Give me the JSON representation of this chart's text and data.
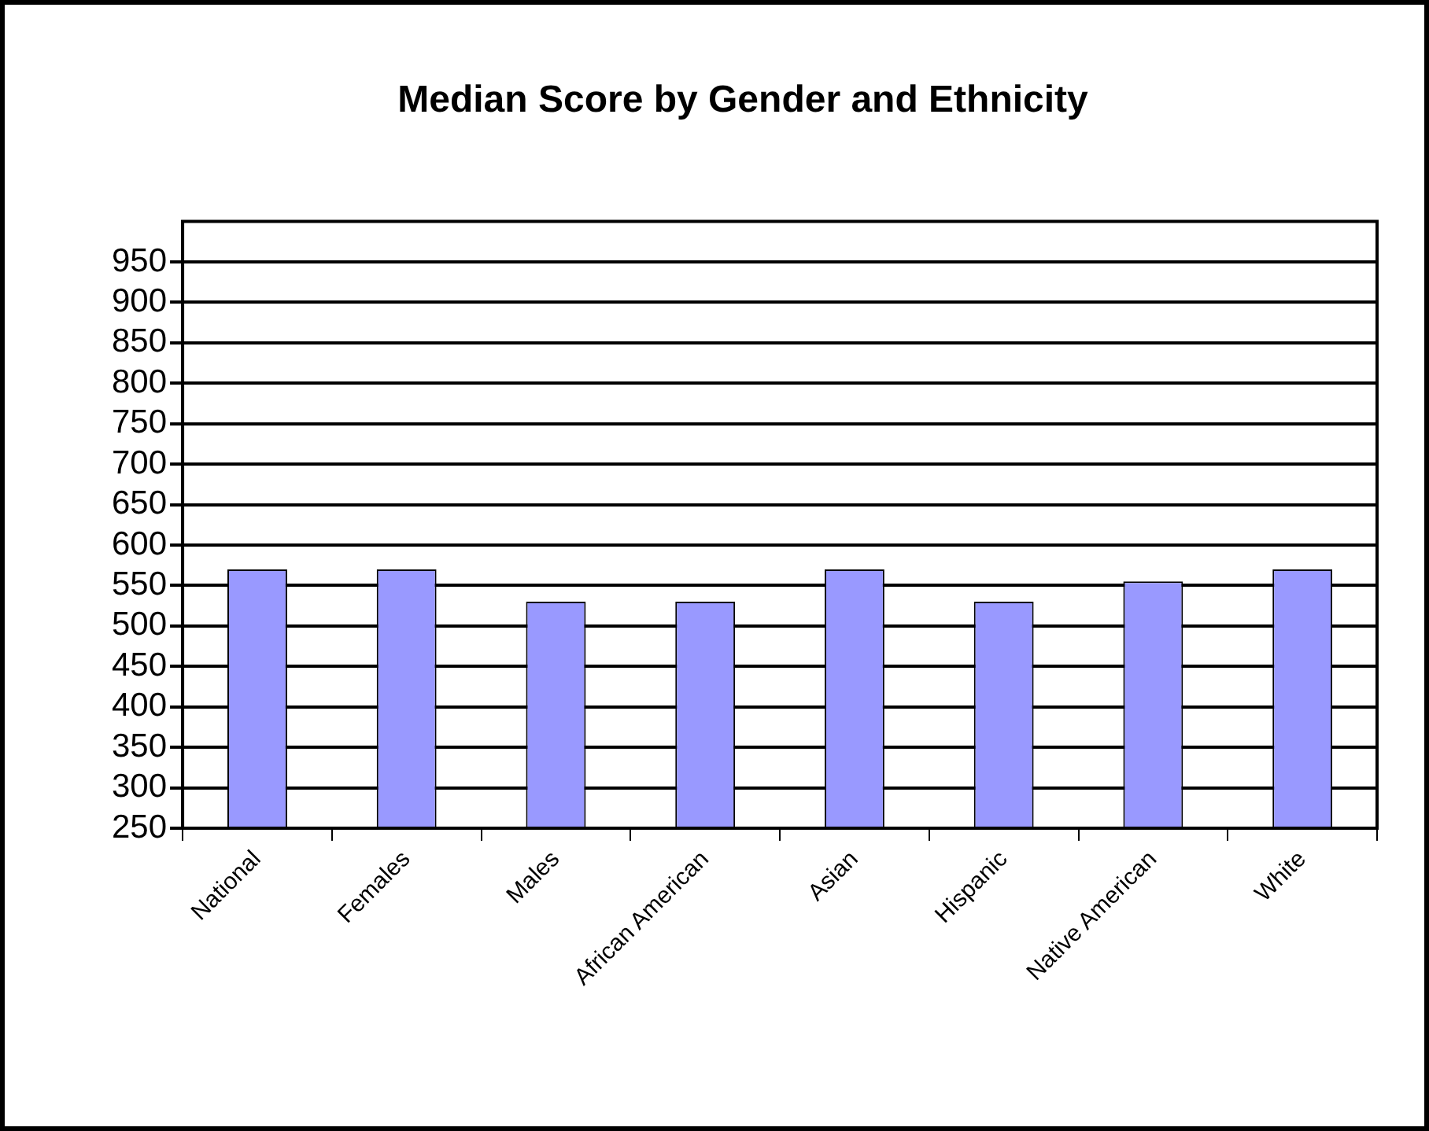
{
  "chart_data": {
    "type": "bar",
    "title": "Median Score by Gender and Ethnicity",
    "categories": [
      "National",
      "Females",
      "Males",
      "African American",
      "Asian",
      "Hispanic",
      "Native American",
      "White"
    ],
    "values": [
      570,
      570,
      530,
      530,
      570,
      530,
      555,
      570
    ],
    "color": "#9999ff",
    "ylim": [
      250,
      1000
    ],
    "yticks": [
      250,
      300,
      350,
      400,
      450,
      500,
      550,
      600,
      650,
      700,
      750,
      800,
      850,
      900,
      950
    ],
    "grid": "y",
    "legend": false
  }
}
